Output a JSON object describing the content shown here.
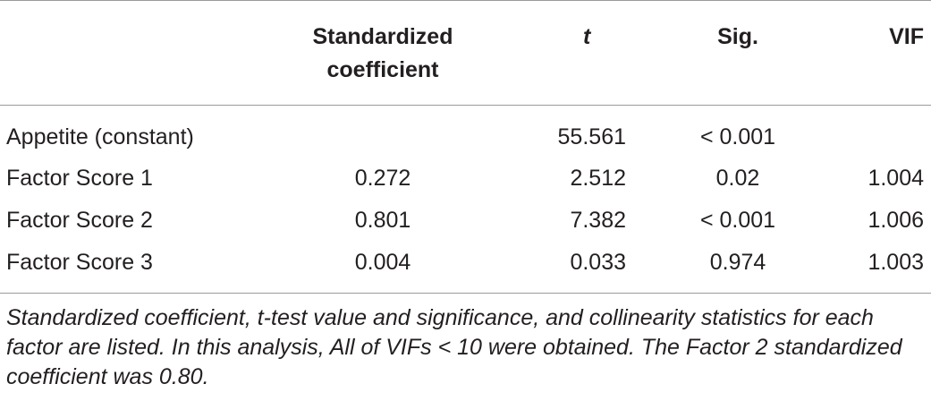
{
  "table": {
    "headers": {
      "label": "",
      "std_line1": "Standardized",
      "std_line2": "coefficient",
      "t": "t",
      "sig": "Sig.",
      "vif": "VIF"
    },
    "rows": [
      {
        "label": "Appetite (constant)",
        "std": "",
        "t": "55.561",
        "sig": "< 0.001",
        "vif": ""
      },
      {
        "label": "Factor Score 1",
        "std": "0.272",
        "t": "2.512",
        "sig": "0.02",
        "vif": "1.004"
      },
      {
        "label": "Factor Score 2",
        "std": "0.801",
        "t": "7.382",
        "sig": "< 0.001",
        "vif": "1.006"
      },
      {
        "label": "Factor Score 3",
        "std": "0.004",
        "t": "0.033",
        "sig": "0.974",
        "vif": "1.003"
      }
    ]
  },
  "footnote": "Standardized coefficient, t-test value and significance, and collinearity statistics for each factor are listed. In this analysis, All of VIFs < 10 were obtained. The Factor 2 standardized coefficient was 0.80."
}
